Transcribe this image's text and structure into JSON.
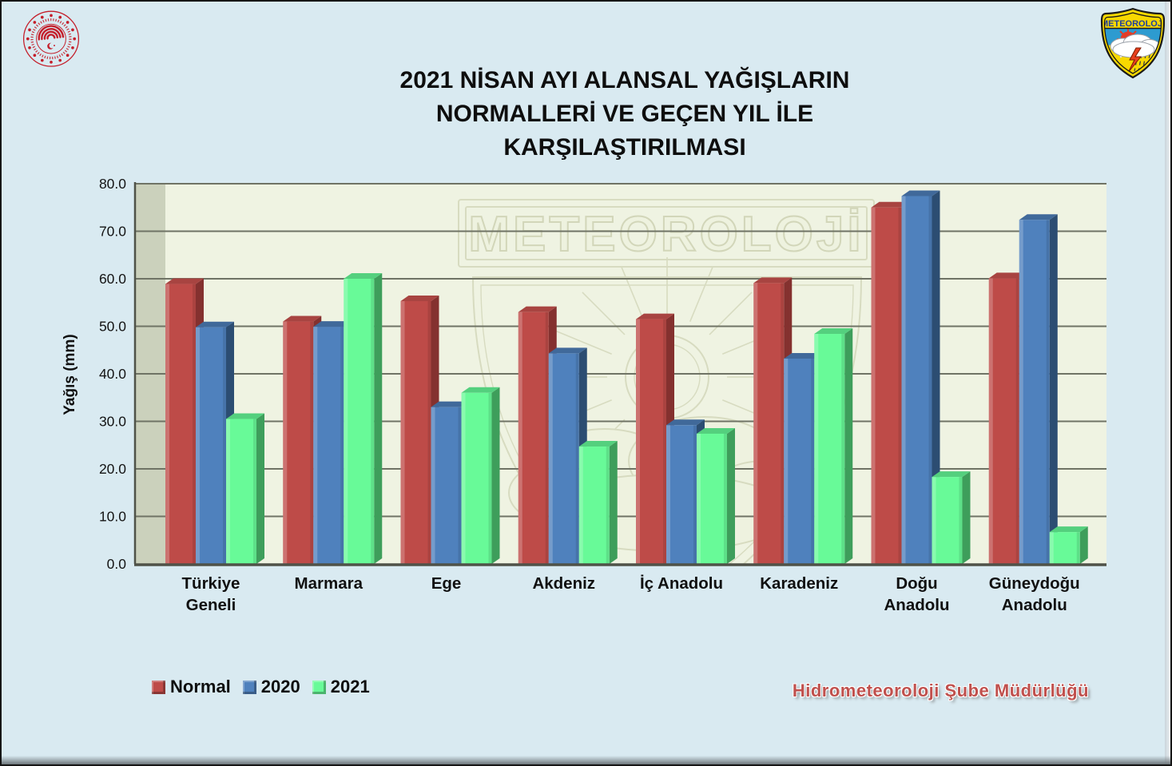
{
  "title": {
    "line1": "2021 NİSAN AYI ALANSAL YAĞIŞLARIN",
    "line2": "NORMALLERİ VE GEÇEN YIL İLE KARŞILAŞTIRILMASI"
  },
  "logos": {
    "ministry_seal": "tc-tarim-ve-orman-bakanligi-seal",
    "badge_text": "METEOROLOJi"
  },
  "watermark": {
    "text": "METEOROLOJİ"
  },
  "legend": {
    "items": [
      {
        "label": "Normal",
        "color": "#be4b48"
      },
      {
        "label": "2020",
        "color": "#4f81bd"
      },
      {
        "label": "2021",
        "color": "#68fa98"
      }
    ]
  },
  "footer": {
    "credit": "Hidrometeoroloji Şube Müdürlüğü",
    "credit_color": "#c0504d"
  },
  "chart_data": {
    "type": "bar",
    "style": "3d-column",
    "ylabel": "Yağış (mm)",
    "ylim": [
      0,
      80
    ],
    "ytick_step": 10,
    "grid": true,
    "legend_position": "bottom-left",
    "plot_bg": "#eff3e2",
    "wall_color": "#cbd1bc",
    "grid_color": "#6f7365",
    "axis_color": "#4f5248",
    "categories": [
      "Türkiye\nGeneli",
      "Marmara",
      "Ege",
      "Akdeniz",
      "İç Anadolu",
      "Karadeniz",
      "Doğu\nAnadolu",
      "Güneydoğu\nAnadolu"
    ],
    "series": [
      {
        "name": "Normal",
        "color": "#be4b48",
        "side_color": "#84312f",
        "top_color": "#a84441",
        "values": [
          58.9,
          51.0,
          55.3,
          53.0,
          51.5,
          59.1,
          75.0,
          60.1
        ]
      },
      {
        "name": "2020",
        "color": "#4f81bd",
        "side_color": "#2c4d72",
        "top_color": "#40699a",
        "values": [
          49.8,
          49.9,
          33.0,
          44.3,
          29.2,
          43.2,
          77.4,
          72.4
        ]
      },
      {
        "name": "2021",
        "color": "#68fa98",
        "side_color": "#3e9e5b",
        "top_color": "#54d07e",
        "values": [
          30.5,
          60.0,
          36.0,
          24.7,
          27.4,
          48.4,
          18.3,
          6.7
        ]
      }
    ]
  }
}
